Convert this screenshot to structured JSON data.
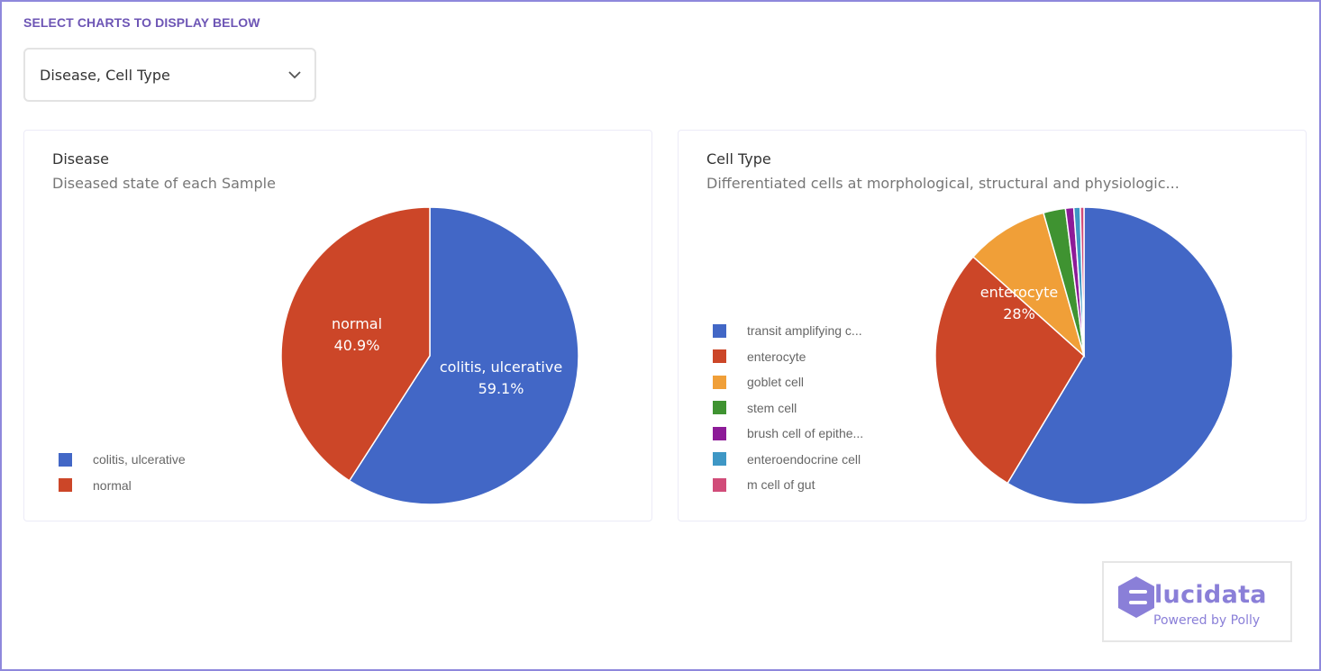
{
  "header": {
    "select_label": "SELECT CHARTS TO DISPLAY BELOW",
    "dropdown_value": "Disease, Cell Type",
    "dropdown_icon": "chevron-down-icon"
  },
  "cards": [
    {
      "title": "Disease",
      "subtitle": "Diseased state of each Sample",
      "legend": [
        {
          "label": "colitis, ulcerative",
          "color": "#4267c6"
        },
        {
          "label": "normal",
          "color": "#cc4628"
        }
      ],
      "slice_labels": [
        {
          "name": "colitis, ulcerative",
          "pct": "59.1%"
        },
        {
          "name": "normal",
          "pct": "40.9%"
        }
      ]
    },
    {
      "title": "Cell Type",
      "subtitle": "Differentiated cells at morphological, structural and physiologic...",
      "legend": [
        {
          "label": "transit amplifying c...",
          "color": "#4267c6"
        },
        {
          "label": "enterocyte",
          "color": "#cc4628"
        },
        {
          "label": "goblet cell",
          "color": "#f09f38"
        },
        {
          "label": "stem cell",
          "color": "#3f9331"
        },
        {
          "label": "brush cell of epithe...",
          "color": "#8d1b98"
        },
        {
          "label": "enteroendocrine cell",
          "color": "#3e97c5"
        },
        {
          "label": "m cell of gut",
          "color": "#d14c79"
        }
      ],
      "slice_labels": [
        {
          "name": "enterocyte",
          "pct": "28%"
        }
      ]
    }
  ],
  "logo": {
    "brand": "lucidata",
    "tagline": "Powered by Polly",
    "icon": "elucidata-hex-logo-icon"
  },
  "chart_data": [
    {
      "type": "pie",
      "title": "Disease",
      "subtitle": "Diseased state of each Sample",
      "categories": [
        "colitis, ulcerative",
        "normal"
      ],
      "values": [
        59.1,
        40.9
      ],
      "colors": [
        "#4267c6",
        "#cc4628"
      ],
      "legend_position": "left-bottom"
    },
    {
      "type": "pie",
      "title": "Cell Type",
      "subtitle": "Differentiated cells at morphological, structural and physiologic...",
      "categories": [
        "transit amplifying c...",
        "enterocyte",
        "goblet cell",
        "stem cell",
        "brush cell of epithe...",
        "enteroendocrine cell",
        "m cell of gut"
      ],
      "values": [
        58.6,
        28.0,
        9.0,
        2.4,
        0.9,
        0.7,
        0.4
      ],
      "colors": [
        "#4267c6",
        "#cc4628",
        "#f09f38",
        "#3f9331",
        "#8d1b98",
        "#3e97c5",
        "#d14c79"
      ],
      "legend_position": "left"
    }
  ]
}
